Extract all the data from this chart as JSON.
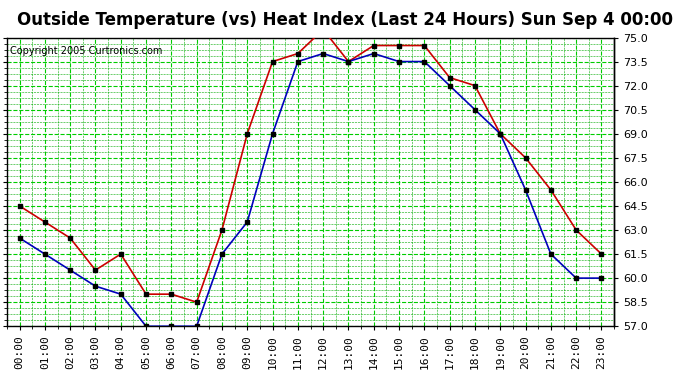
{
  "title": "Outside Temperature (vs) Heat Index (Last 24 Hours) Sun Sep 4 00:00",
  "copyright": "Copyright 2005 Curtronics.com",
  "x_labels": [
    "00:00",
    "01:00",
    "02:00",
    "03:00",
    "04:00",
    "05:00",
    "06:00",
    "07:00",
    "08:00",
    "09:00",
    "10:00",
    "11:00",
    "12:00",
    "13:00",
    "14:00",
    "15:00",
    "16:00",
    "17:00",
    "18:00",
    "19:00",
    "20:00",
    "21:00",
    "22:00",
    "23:00"
  ],
  "temp_blue": [
    62.5,
    61.5,
    60.5,
    59.5,
    59.0,
    57.0,
    57.0,
    57.0,
    61.5,
    63.5,
    69.0,
    73.5,
    74.0,
    73.5,
    74.0,
    73.5,
    73.5,
    72.0,
    70.5,
    69.0,
    65.5,
    61.5,
    60.0,
    60.0
  ],
  "heat_red": [
    64.5,
    63.5,
    62.5,
    60.5,
    61.5,
    59.0,
    59.0,
    58.5,
    63.0,
    69.0,
    73.5,
    74.0,
    75.5,
    73.5,
    74.5,
    74.5,
    74.5,
    72.5,
    72.0,
    69.0,
    67.5,
    65.5,
    63.0,
    61.5
  ],
  "ylim": [
    57.0,
    75.0
  ],
  "yticks": [
    57.0,
    58.5,
    60.0,
    61.5,
    63.0,
    64.5,
    66.0,
    67.5,
    69.0,
    70.5,
    72.0,
    73.5,
    75.0
  ],
  "blue_color": "#0000bb",
  "red_color": "#cc0000",
  "grid_major_color": "#00cc00",
  "grid_minor_color": "#00aa00",
  "bg_color": "#ffffff",
  "title_fontsize": 12,
  "tick_fontsize": 8,
  "marker": "s",
  "marker_size": 3
}
